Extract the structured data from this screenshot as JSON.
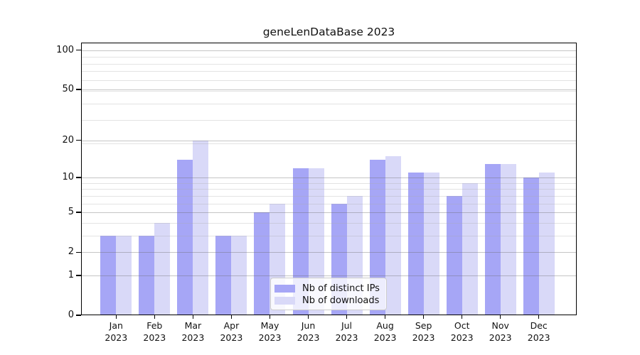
{
  "chart_data": {
    "type": "bar",
    "title": "geneLenDataBase 2023",
    "categories": [
      "Jan",
      "Feb",
      "Mar",
      "Apr",
      "May",
      "Jun",
      "Jul",
      "Aug",
      "Sep",
      "Oct",
      "Nov",
      "Dec"
    ],
    "category_year": "2023",
    "series": [
      {
        "name": "Nb of distinct IPs",
        "color": "#a6a6f6",
        "values": [
          3,
          3,
          14,
          3,
          5,
          12,
          6,
          14,
          11,
          7,
          13,
          10
        ]
      },
      {
        "name": "Nb of downloads",
        "color": "#d9d9f8",
        "values": [
          3,
          4,
          20,
          3,
          6,
          12,
          7,
          15,
          11,
          9,
          13,
          11
        ]
      }
    ],
    "yscale": "log1p",
    "ylim": [
      0,
      114.3
    ],
    "y_major_ticks": [
      0,
      1,
      2,
      5,
      10,
      20,
      50,
      100
    ],
    "y_minor_gridlines": [
      3,
      4,
      6,
      7,
      8,
      9,
      19,
      29,
      39,
      49,
      59,
      69,
      79,
      89
    ],
    "grid": true,
    "legend_position": "inside-bottom-center"
  }
}
